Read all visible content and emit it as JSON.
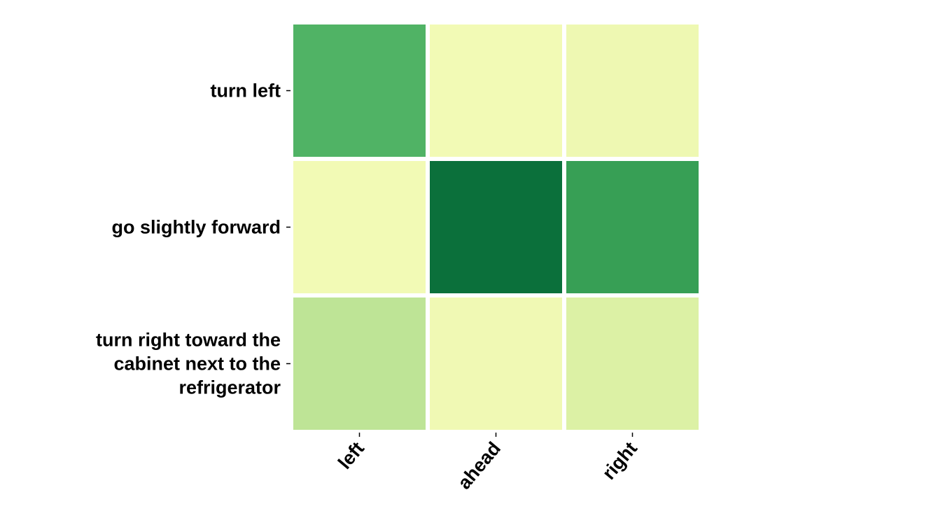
{
  "chart_data": {
    "type": "heatmap",
    "title": "",
    "xlabel": "",
    "ylabel": "",
    "x_categories": [
      "left",
      "ahead",
      "right"
    ],
    "y_categories": [
      [
        "turn left"
      ],
      [
        "go slightly forward"
      ],
      [
        "turn right toward the",
        "cabinet next to the",
        "refrigerator"
      ]
    ],
    "values": [
      [
        0.62,
        0.03,
        0.05
      ],
      [
        0.03,
        0.95,
        0.72
      ],
      [
        0.27,
        0.04,
        0.15
      ]
    ],
    "colormap": "YlGn",
    "colors": [
      "#f7fcb9",
      "#d9f0a3",
      "#addd8e",
      "#78c679",
      "#41ab5d",
      "#238443",
      "#006837"
    ],
    "grid": false,
    "legend": "none"
  }
}
